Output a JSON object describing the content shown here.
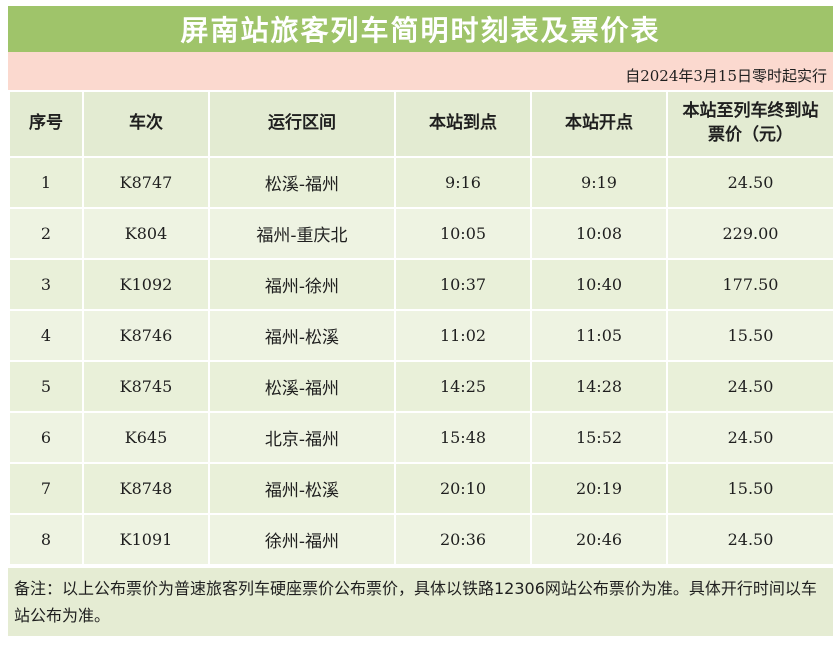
{
  "title": "屏南站旅客列车简明时刻表及票价表",
  "effective": "自2024年3月15日零时起实行",
  "headers": {
    "seq": "序号",
    "train": "车次",
    "route": "运行区间",
    "arrive": "本站到点",
    "depart": "本站开点",
    "price_line1": "本站至列车终到站",
    "price_line2": "票价（元）"
  },
  "rows": [
    {
      "seq": "1",
      "train": "K8747",
      "route": "松溪-福州",
      "arrive": "9:16",
      "depart": "9:19",
      "price": "24.50"
    },
    {
      "seq": "2",
      "train": "K804",
      "route": "福州-重庆北",
      "arrive": "10:05",
      "depart": "10:08",
      "price": "229.00"
    },
    {
      "seq": "3",
      "train": "K1092",
      "route": "福州-徐州",
      "arrive": "10:37",
      "depart": "10:40",
      "price": "177.50"
    },
    {
      "seq": "4",
      "train": "K8746",
      "route": "福州-松溪",
      "arrive": "11:02",
      "depart": "11:05",
      "price": "15.50"
    },
    {
      "seq": "5",
      "train": "K8745",
      "route": "松溪-福州",
      "arrive": "14:25",
      "depart": "14:28",
      "price": "24.50"
    },
    {
      "seq": "6",
      "train": "K645",
      "route": "北京-福州",
      "arrive": "15:48",
      "depart": "15:52",
      "price": "24.50"
    },
    {
      "seq": "7",
      "train": "K8748",
      "route": "福州-松溪",
      "arrive": "20:10",
      "depart": "20:19",
      "price": "15.50"
    },
    {
      "seq": "8",
      "train": "K1091",
      "route": "徐州-福州",
      "arrive": "20:36",
      "depart": "20:46",
      "price": "24.50"
    }
  ],
  "note": "备注：以上公布票价为普速旅客列车硬座票价公布票价，具体以铁路12306网站公布票价为准。具体开行时间以车站公布为准。",
  "colors": {
    "title_bg": "#9fc46a",
    "effective_bg": "#fbd9cf",
    "header_bg": "#e3ebd2",
    "row_bg": "#e9f0d9"
  }
}
